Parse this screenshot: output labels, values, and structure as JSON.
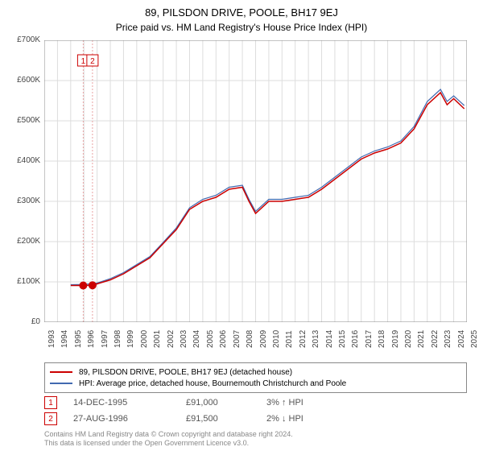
{
  "title": "89, PILSDON DRIVE, POOLE, BH17 9EJ",
  "subtitle": "Price paid vs. HM Land Registry's House Price Index (HPI)",
  "chart": {
    "type": "line",
    "background_color": "#ffffff",
    "grid_color": "#dddddd",
    "axis_color": "#888888",
    "x_axis": {
      "min": 1993,
      "max": 2025,
      "ticks": [
        1993,
        1994,
        1995,
        1996,
        1997,
        1998,
        1999,
        2000,
        2001,
        2002,
        2003,
        2004,
        2005,
        2006,
        2007,
        2008,
        2009,
        2010,
        2011,
        2012,
        2013,
        2014,
        2015,
        2016,
        2017,
        2018,
        2019,
        2020,
        2021,
        2022,
        2023,
        2024,
        2025
      ],
      "label_fontsize": 10,
      "label_rotation": -90
    },
    "y_axis": {
      "min": 0,
      "max": 700000,
      "tick_step": 100000,
      "tick_labels": [
        "£0",
        "£100K",
        "£200K",
        "£300K",
        "£400K",
        "£500K",
        "£600K",
        "£700K"
      ],
      "label_fontsize": 10
    },
    "series": [
      {
        "name": "property",
        "label": "89, PILSDON DRIVE, POOLE, BH17 9EJ (detached house)",
        "color": "#cc0000",
        "line_width": 1.5,
        "data": [
          [
            1995.0,
            91000
          ],
          [
            1995.95,
            91000
          ],
          [
            1996.65,
            91500
          ],
          [
            1997,
            95000
          ],
          [
            1998,
            105000
          ],
          [
            1999,
            120000
          ],
          [
            2000,
            140000
          ],
          [
            2001,
            160000
          ],
          [
            2002,
            195000
          ],
          [
            2003,
            230000
          ],
          [
            2004,
            280000
          ],
          [
            2005,
            300000
          ],
          [
            2006,
            310000
          ],
          [
            2007,
            330000
          ],
          [
            2008,
            335000
          ],
          [
            2008.5,
            300000
          ],
          [
            2009,
            270000
          ],
          [
            2010,
            300000
          ],
          [
            2011,
            300000
          ],
          [
            2012,
            305000
          ],
          [
            2013,
            310000
          ],
          [
            2014,
            330000
          ],
          [
            2015,
            355000
          ],
          [
            2016,
            380000
          ],
          [
            2017,
            405000
          ],
          [
            2018,
            420000
          ],
          [
            2019,
            430000
          ],
          [
            2020,
            445000
          ],
          [
            2021,
            480000
          ],
          [
            2022,
            540000
          ],
          [
            2023,
            570000
          ],
          [
            2023.5,
            540000
          ],
          [
            2024,
            555000
          ],
          [
            2024.8,
            530000
          ]
        ]
      },
      {
        "name": "hpi",
        "label": "HPI: Average price, detached house, Bournemouth Christchurch and Poole",
        "color": "#4169b0",
        "line_width": 1.2,
        "data": [
          [
            1995.0,
            93000
          ],
          [
            1996,
            93500
          ],
          [
            1997,
            97000
          ],
          [
            1998,
            108000
          ],
          [
            1999,
            123000
          ],
          [
            2000,
            143000
          ],
          [
            2001,
            163000
          ],
          [
            2002,
            198000
          ],
          [
            2003,
            234000
          ],
          [
            2004,
            284000
          ],
          [
            2005,
            305000
          ],
          [
            2006,
            315000
          ],
          [
            2007,
            335000
          ],
          [
            2008,
            340000
          ],
          [
            2008.5,
            305000
          ],
          [
            2009,
            275000
          ],
          [
            2010,
            305000
          ],
          [
            2011,
            305000
          ],
          [
            2012,
            310000
          ],
          [
            2013,
            315000
          ],
          [
            2014,
            335000
          ],
          [
            2015,
            360000
          ],
          [
            2016,
            385000
          ],
          [
            2017,
            410000
          ],
          [
            2018,
            425000
          ],
          [
            2019,
            435000
          ],
          [
            2020,
            450000
          ],
          [
            2021,
            486000
          ],
          [
            2022,
            548000
          ],
          [
            2023,
            578000
          ],
          [
            2023.5,
            548000
          ],
          [
            2024,
            562000
          ],
          [
            2024.8,
            538000
          ]
        ]
      }
    ],
    "sale_markers": [
      {
        "n": 1,
        "x": 1995.95,
        "y": 91000,
        "marker_color": "#cc0000",
        "marker_size": 5,
        "vline_color": "#e8a2a2",
        "label_box_border": "#cc0000"
      },
      {
        "n": 2,
        "x": 1996.65,
        "y": 91500,
        "marker_color": "#cc0000",
        "marker_size": 5,
        "vline_color": "#e8a2a2",
        "label_box_border": "#cc0000"
      }
    ]
  },
  "legend": {
    "items": [
      {
        "color": "#cc0000",
        "label": "89, PILSDON DRIVE, POOLE, BH17 9EJ (detached house)"
      },
      {
        "color": "#4169b0",
        "label": "HPI: Average price, detached house, Bournemouth Christchurch and Poole"
      }
    ]
  },
  "sales": [
    {
      "n": "1",
      "date": "14-DEC-1995",
      "price": "£91,000",
      "delta": "3% ↑ HPI"
    },
    {
      "n": "2",
      "date": "27-AUG-1996",
      "price": "£91,500",
      "delta": "2% ↓ HPI"
    }
  ],
  "footer": {
    "line1": "Contains HM Land Registry data © Crown copyright and database right 2024.",
    "line2": "This data is licensed under the Open Government Licence v3.0."
  }
}
